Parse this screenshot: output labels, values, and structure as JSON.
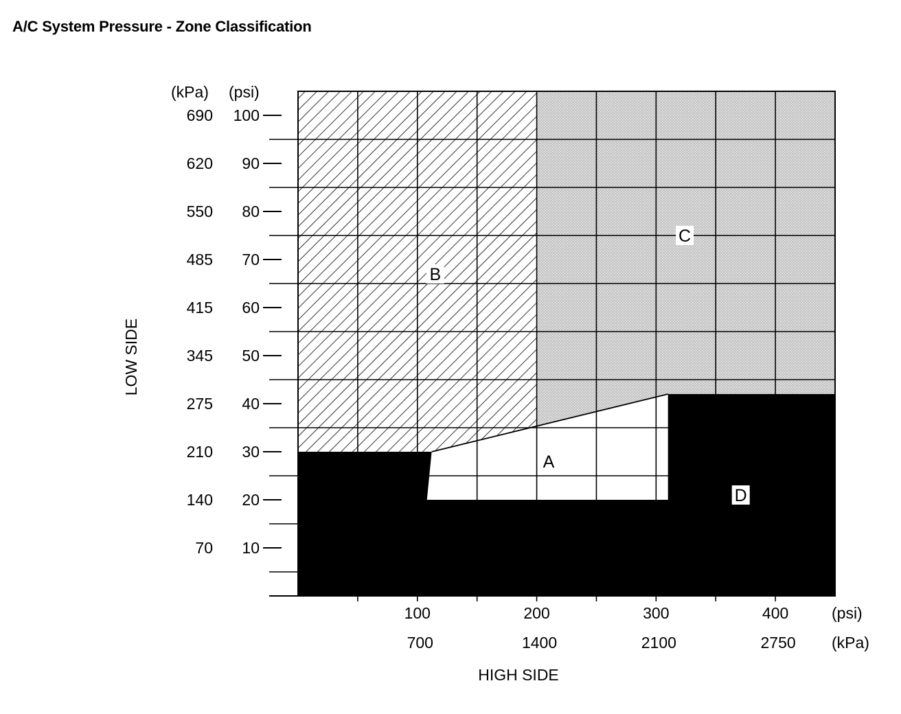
{
  "title": "A/C System Pressure - Zone Classification",
  "chart_data": {
    "type": "area",
    "title": "A/C System Pressure - Zone Classification",
    "xlabel": "HIGH SIDE",
    "ylabel": "LOW SIDE",
    "x_units": [
      "(psi)",
      "(kPa)"
    ],
    "y_units": [
      "(kPa)",
      "(psi)"
    ],
    "xlim": [
      0,
      450
    ],
    "ylim": [
      0,
      105
    ],
    "x_ticks": [
      {
        "psi": 100,
        "kpa": "700",
        "label_psi": "100"
      },
      {
        "psi": 200,
        "kpa": "1400",
        "label_psi": "200"
      },
      {
        "psi": 300,
        "kpa": "2100",
        "label_psi": "300"
      },
      {
        "psi": 400,
        "kpa": "2750",
        "label_psi": "400"
      }
    ],
    "y_ticks": [
      {
        "psi": 100,
        "kpa": "690",
        "label_psi": "100"
      },
      {
        "psi": 90,
        "kpa": "620",
        "label_psi": "90"
      },
      {
        "psi": 80,
        "kpa": "550",
        "label_psi": "80"
      },
      {
        "psi": 70,
        "kpa": "485",
        "label_psi": "70"
      },
      {
        "psi": 60,
        "kpa": "415",
        "label_psi": "60"
      },
      {
        "psi": 50,
        "kpa": "345",
        "label_psi": "50"
      },
      {
        "psi": 40,
        "kpa": "275",
        "label_psi": "40"
      },
      {
        "psi": 30,
        "kpa": "210",
        "label_psi": "30"
      },
      {
        "psi": 20,
        "kpa": "140",
        "label_psi": "20"
      },
      {
        "psi": 10,
        "kpa": "70",
        "label_psi": "10"
      }
    ],
    "grid": true,
    "grid_x_psi": [
      50,
      100,
      150,
      200,
      250,
      300,
      350,
      400
    ],
    "grid_y_psi": [
      5,
      15,
      25,
      35,
      45,
      55,
      65,
      75,
      85,
      95
    ],
    "plot_extent": {
      "x": [
        0,
        450
      ],
      "y": [
        0,
        105
      ]
    },
    "zones": [
      {
        "label": "A",
        "fill": "white",
        "polygon": [
          [
            108,
            20
          ],
          [
            112,
            30
          ],
          [
            310,
            42
          ],
          [
            310,
            20
          ]
        ],
        "label_at": [
          210,
          28
        ]
      },
      {
        "label": "B",
        "fill": "hatch",
        "polygon": [
          [
            0,
            30
          ],
          [
            112,
            30
          ],
          [
            200,
            35
          ],
          [
            200,
            105
          ],
          [
            0,
            105
          ]
        ],
        "label_at": [
          115,
          67
        ]
      },
      {
        "label": "C",
        "fill": "stipple",
        "polygon": [
          [
            200,
            35
          ],
          [
            310,
            42
          ],
          [
            450,
            42
          ],
          [
            450,
            105
          ],
          [
            200,
            105
          ]
        ],
        "label_at": [
          324,
          75
        ]
      },
      {
        "label": "D",
        "fill": "black",
        "polygon": [
          [
            0,
            0
          ],
          [
            450,
            0
          ],
          [
            450,
            42
          ],
          [
            310,
            42
          ],
          [
            310,
            20
          ],
          [
            108,
            20
          ],
          [
            112,
            30
          ],
          [
            0,
            30
          ]
        ],
        "label_at": [
          371,
          21
        ]
      }
    ],
    "colors": {
      "ink": "#000000",
      "stipple": "#d2d2d2",
      "paper": "#ffffff"
    }
  }
}
